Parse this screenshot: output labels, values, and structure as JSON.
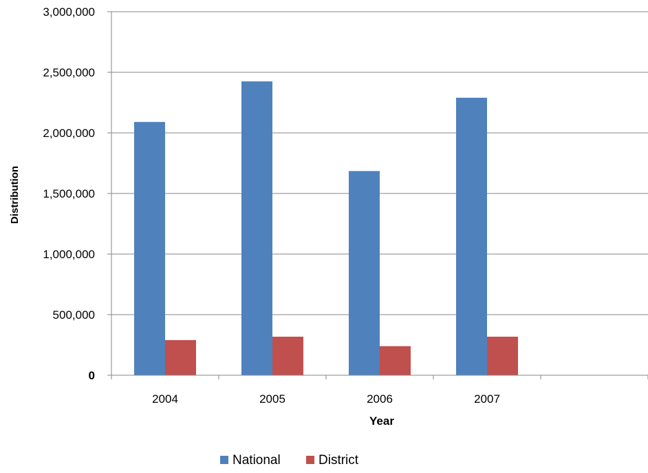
{
  "chart_data": {
    "type": "bar",
    "title": "",
    "xlabel": "Year",
    "ylabel": "Distribution",
    "categories": [
      "2004",
      "2005",
      "2006",
      "2007",
      ""
    ],
    "series": [
      {
        "name": "National",
        "color": "#4F81BD",
        "values": [
          2090000,
          2425000,
          1685000,
          2290000,
          null
        ]
      },
      {
        "name": "District",
        "color": "#C0504D",
        "values": [
          290000,
          318000,
          240000,
          318000,
          null
        ]
      }
    ],
    "ylim": [
      0,
      3000000
    ],
    "yticks": [
      0,
      500000,
      1000000,
      1500000,
      2000000,
      2500000,
      3000000
    ],
    "ytick_labels": [
      "0",
      "500,000",
      "1,000,000",
      "1,500,000",
      "2,000,000",
      "2,500,000",
      "3,000,000"
    ],
    "grid": true,
    "legend": "bottom"
  }
}
